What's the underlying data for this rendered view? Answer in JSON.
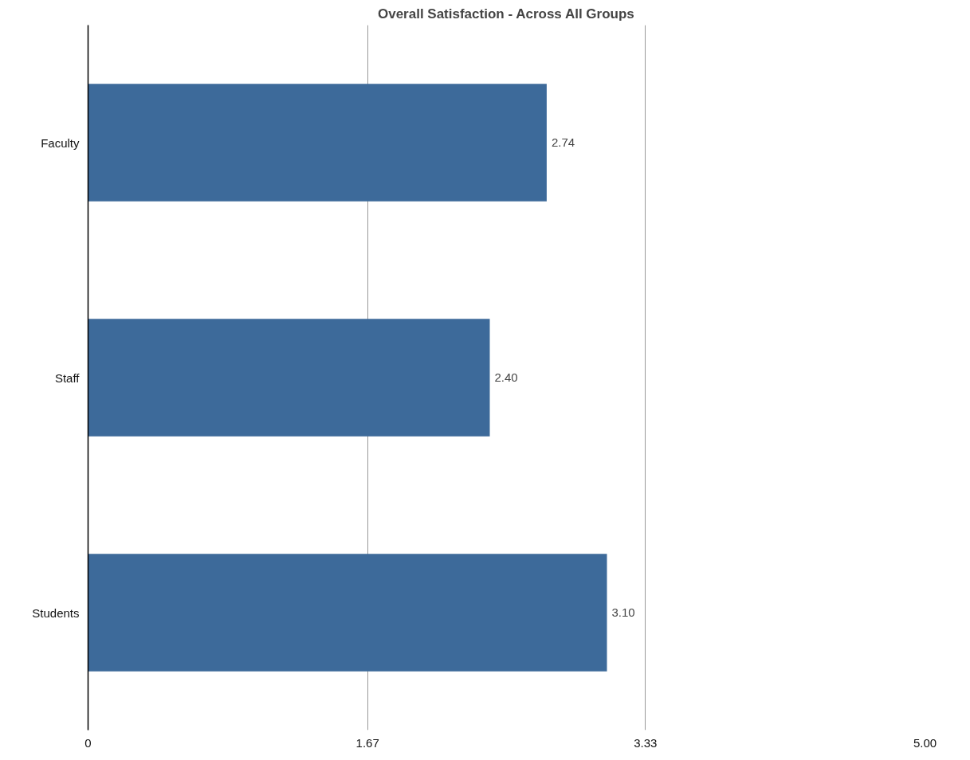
{
  "chart_data": {
    "type": "bar",
    "orientation": "horizontal",
    "title": "Overall Satisfaction - Across All Groups",
    "categories": [
      "Faculty",
      "Staff",
      "Students"
    ],
    "values": [
      2.74,
      2.4,
      3.1
    ],
    "value_labels": [
      "2.74",
      "2.40",
      "3.10"
    ],
    "color": "#3d6a9a",
    "xlim": [
      0,
      5
    ],
    "xticks": [
      0,
      1.67,
      3.33,
      {
        "value": 5,
        "label": "5.00"
      }
    ],
    "grid": "x"
  }
}
